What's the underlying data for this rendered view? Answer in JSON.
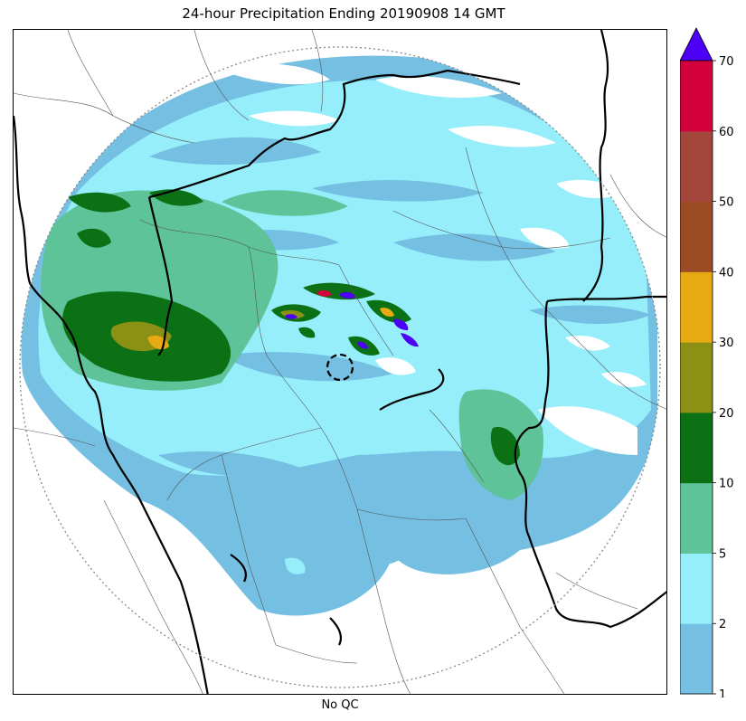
{
  "map": {
    "title": "24-hour Precipitation Ending 20190908 14 GMT",
    "bottom_label": "No QC"
  },
  "colorbar": {
    "ticks": [
      "1",
      "2",
      "5",
      "10",
      "20",
      "30",
      "40",
      "50",
      "60",
      "70"
    ],
    "colors": [
      "#74bfe2",
      "#96eefb",
      "#5ec399",
      "#0c7114",
      "#8b9115",
      "#e8aa13",
      "#9c4c24",
      "#a3473c",
      "#d5003e"
    ],
    "extend_color": "#4c00f5"
  },
  "legend_colors": {
    "border": "#000000",
    "district_lines": "#555555",
    "range_ring": "#888888"
  }
}
